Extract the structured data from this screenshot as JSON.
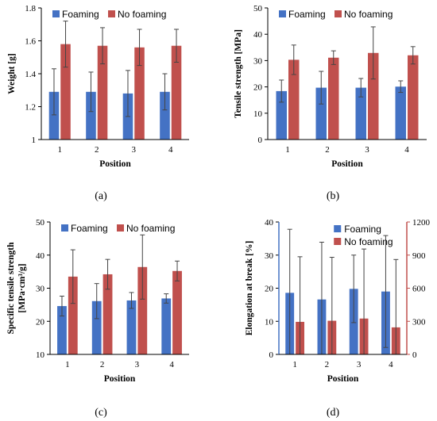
{
  "colors": {
    "foaming": "#4472C4",
    "no_foaming": "#C0504D",
    "errorbar": "#444444",
    "axis": "#000000",
    "right_axis": "#C0504D"
  },
  "chart_data": [
    {
      "type": "bar",
      "caption": "(a)",
      "categories": [
        "1",
        "2",
        "3",
        "4"
      ],
      "xlabel": "Position",
      "ylabel": "Weight [g]",
      "ylim": [
        1,
        1.8
      ],
      "yticks": [
        "1",
        "1.2",
        "1.4",
        "1.6",
        "1.8"
      ],
      "legend": "top",
      "series": [
        {
          "name": "Foaming",
          "values": [
            1.29,
            1.29,
            1.28,
            1.29
          ],
          "errors": [
            0.14,
            0.12,
            0.14,
            0.11
          ]
        },
        {
          "name": "No foaming",
          "values": [
            1.58,
            1.57,
            1.56,
            1.57
          ],
          "errors": [
            0.14,
            0.11,
            0.11,
            0.1
          ]
        }
      ]
    },
    {
      "type": "bar",
      "caption": "(b)",
      "categories": [
        "1",
        "2",
        "3",
        "4"
      ],
      "xlabel": "Position",
      "ylabel": "Tensile strength [MPa]",
      "ylim": [
        0,
        50
      ],
      "yticks": [
        "0",
        "10",
        "20",
        "30",
        "40",
        "50"
      ],
      "legend": "top",
      "series": [
        {
          "name": "Foaming",
          "values": [
            18.4,
            19.7,
            19.7,
            20.1
          ],
          "errors": [
            4.2,
            6.2,
            3.5,
            2.2
          ]
        },
        {
          "name": "No foaming",
          "values": [
            30.3,
            31.1,
            32.9,
            32.0
          ],
          "errors": [
            5.6,
            2.6,
            9.9,
            3.3
          ]
        }
      ]
    },
    {
      "type": "bar",
      "caption": "(c)",
      "categories": [
        "1",
        "2",
        "3",
        "4"
      ],
      "xlabel": "Position",
      "ylabel_lines": [
        "Specific tensile strength",
        "[MPa·cm³/g]"
      ],
      "ylim": [
        10,
        50
      ],
      "yticks": [
        "10",
        "20",
        "30",
        "40",
        "50"
      ],
      "legend": "top",
      "series": [
        {
          "name": "Foaming",
          "values": [
            24.6,
            26.1,
            26.3,
            26.9
          ],
          "errors": [
            3.0,
            5.3,
            2.4,
            1.4
          ]
        },
        {
          "name": "No foaming",
          "values": [
            33.5,
            34.2,
            36.4,
            35.2
          ],
          "errors": [
            8.1,
            4.5,
            9.7,
            3.0
          ]
        }
      ]
    },
    {
      "type": "bar",
      "caption": "(d)",
      "categories": [
        "1",
        "2",
        "3",
        "4"
      ],
      "xlabel": "Position",
      "ylabel": "Elongation at break [%]",
      "ylim": [
        0,
        40
      ],
      "yticks": [
        "0",
        "10",
        "20",
        "30",
        "40"
      ],
      "y2lim": [
        0,
        1200
      ],
      "y2ticks": [
        "0",
        "300",
        "600",
        "900",
        "1200"
      ],
      "legend": "top-right",
      "series": [
        {
          "name": "Foaming",
          "axis": "left",
          "values": [
            18.6,
            16.6,
            19.8,
            19.0
          ],
          "errors": [
            19.2,
            17.3,
            10.2,
            16.9
          ]
        },
        {
          "name": "No foaming",
          "axis": "right",
          "values": [
            295,
            305,
            325,
            245
          ],
          "errors": [
            590,
            575,
            630,
            615
          ]
        }
      ]
    }
  ]
}
